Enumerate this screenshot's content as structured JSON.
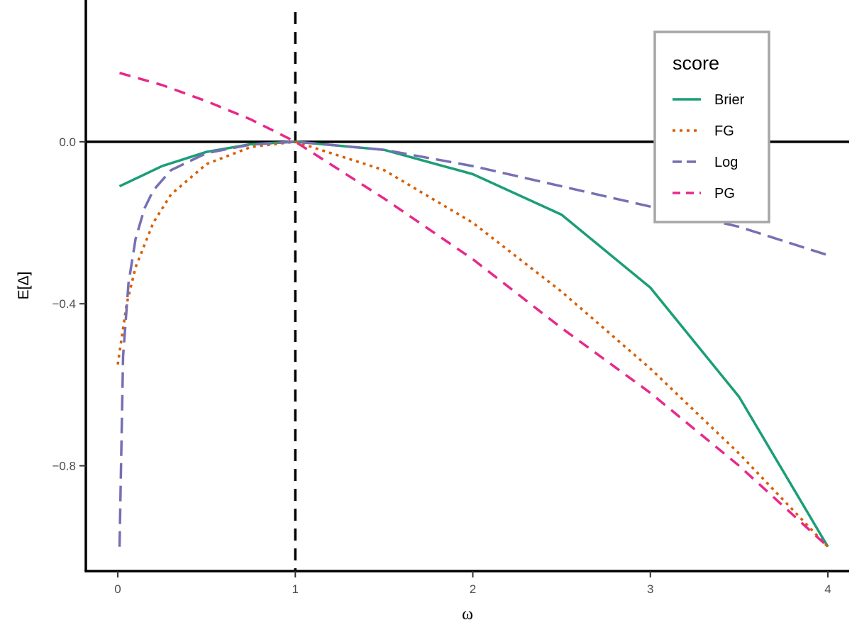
{
  "chart_data": {
    "type": "line",
    "xlabel": "ω",
    "ylabel": "E[Δ]",
    "xlim": [
      -0.18,
      4.12
    ],
    "ylim": [
      -1.06,
      0.35
    ],
    "x_ticks": [
      {
        "value": 0,
        "label": "0"
      },
      {
        "value": 1,
        "label": "1"
      },
      {
        "value": 2,
        "label": "2"
      },
      {
        "value": 3,
        "label": "3"
      },
      {
        "value": 4,
        "label": "4"
      }
    ],
    "y_ticks": [
      {
        "value": 0,
        "label": "0.0"
      },
      {
        "value": -0.4,
        "label": "−0.4"
      },
      {
        "value": -0.8,
        "label": "−0.8"
      }
    ],
    "reference_lines": [
      {
        "orientation": "horizontal",
        "value": 0,
        "style": "solid",
        "color": "#000000"
      },
      {
        "orientation": "vertical",
        "value": 1,
        "style": "dashed",
        "color": "#000000"
      }
    ],
    "legend": {
      "title": "score",
      "position": "top-right"
    },
    "series": [
      {
        "name": "Brier",
        "color": "#1b9e77",
        "dash": "solid",
        "x": [
          0.01,
          0.25,
          0.5,
          0.75,
          1,
          1.5,
          2,
          2.5,
          3,
          3.5,
          4
        ],
        "y": [
          -0.11,
          -0.06,
          -0.025,
          -0.006,
          0,
          -0.02,
          -0.08,
          -0.18,
          -0.36,
          -0.63,
          -1.0
        ]
      },
      {
        "name": "FG",
        "color": "#d95f02",
        "dash": "dotted",
        "x": [
          0,
          0.05,
          0.1,
          0.2,
          0.3,
          0.5,
          0.75,
          1,
          1.5,
          2,
          2.5,
          3,
          3.5,
          4
        ],
        "y": [
          -0.55,
          -0.4,
          -0.31,
          -0.2,
          -0.13,
          -0.055,
          -0.013,
          0,
          -0.07,
          -0.2,
          -0.37,
          -0.56,
          -0.77,
          -1.0
        ]
      },
      {
        "name": "Log",
        "color": "#7570b3",
        "dash": "longdash",
        "x": [
          0.01,
          0.03,
          0.06,
          0.1,
          0.15,
          0.2,
          0.3,
          0.5,
          0.75,
          1,
          1.5,
          2,
          2.5,
          3,
          3.5,
          4
        ],
        "y": [
          -1.0,
          -0.53,
          -0.35,
          -0.24,
          -0.165,
          -0.12,
          -0.07,
          -0.028,
          -0.007,
          0,
          -0.02,
          -0.06,
          -0.11,
          -0.16,
          -0.21,
          -0.28
        ]
      },
      {
        "name": "PG",
        "color": "#e7298a",
        "dash": "dashed",
        "x": [
          0.01,
          0.25,
          0.5,
          0.75,
          1,
          1.5,
          2,
          2.5,
          3,
          3.5,
          4
        ],
        "y": [
          0.17,
          0.14,
          0.1,
          0.055,
          0,
          -0.14,
          -0.29,
          -0.46,
          -0.62,
          -0.8,
          -1.0
        ]
      }
    ]
  }
}
